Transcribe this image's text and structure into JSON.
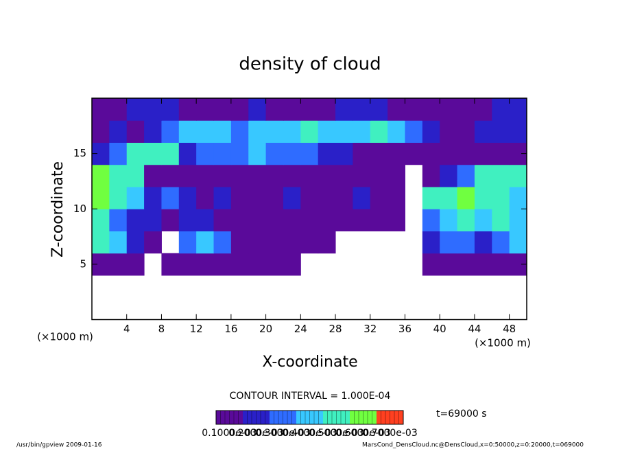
{
  "chart_data": {
    "type": "contour",
    "title": "density of cloud",
    "x_label": "X-coordinate",
    "y_label": "Z-coordinate",
    "x_unit": "(×1000 m)",
    "y_unit": "(×1000 m)",
    "xlim": [
      0,
      50
    ],
    "ylim": [
      0,
      20
    ],
    "xticks": [
      4,
      8,
      12,
      16,
      20,
      24,
      28,
      32,
      36,
      40,
      44,
      48
    ],
    "yticks": [
      5,
      10,
      15
    ],
    "xbins": [
      0,
      2,
      4,
      6,
      8,
      10,
      12,
      14,
      16,
      18,
      20,
      22,
      24,
      26,
      28,
      30,
      32,
      34,
      36,
      38,
      40,
      42,
      44,
      46,
      48,
      50
    ],
    "zbins": [
      0,
      2,
      4,
      6,
      8,
      10,
      12,
      14,
      16,
      18,
      20
    ],
    "field": [
      [
        null,
        null,
        null,
        null,
        null,
        null,
        null,
        null,
        null,
        null,
        null,
        null,
        null,
        null,
        null,
        null,
        null,
        null,
        null,
        null,
        null,
        null,
        null,
        null,
        null
      ],
      [
        null,
        null,
        null,
        null,
        null,
        null,
        null,
        null,
        null,
        null,
        null,
        null,
        null,
        null,
        null,
        null,
        null,
        null,
        null,
        null,
        null,
        null,
        null,
        null,
        null
      ],
      [
        0.0001,
        0.0001,
        0.0001,
        null,
        0.0001,
        0.0001,
        0.0001,
        0.0001,
        0.0001,
        0.0001,
        0.0001,
        0.0001,
        null,
        null,
        null,
        null,
        null,
        null,
        null,
        0.0001,
        0.0001,
        0.0001,
        0.0001,
        0.0001,
        0.0001
      ],
      [
        0.0005,
        0.0004,
        0.0002,
        0.0001,
        null,
        0.0003,
        0.0004,
        0.0003,
        0.0001,
        0.0001,
        0.0001,
        0.0001,
        0.0001,
        0.0001,
        null,
        null,
        null,
        null,
        null,
        0.0002,
        0.0003,
        0.0003,
        0.0002,
        0.0003,
        0.0004
      ],
      [
        0.0005,
        0.0003,
        0.0002,
        0.0002,
        0.0001,
        0.0002,
        0.0002,
        0.0001,
        0.0001,
        0.0001,
        0.0001,
        0.0001,
        0.0001,
        0.0001,
        0.0001,
        0.0001,
        0.0001,
        0.0001,
        null,
        0.0003,
        0.0004,
        0.0005,
        0.0004,
        0.0005,
        0.0004
      ],
      [
        0.0006,
        0.0005,
        0.0004,
        0.0002,
        0.0003,
        0.0002,
        0.0001,
        0.0002,
        0.0001,
        0.0001,
        0.0001,
        0.0002,
        0.0001,
        0.0001,
        0.0001,
        0.0002,
        0.0001,
        0.0001,
        null,
        0.0005,
        0.0005,
        0.0006,
        0.0005,
        0.0005,
        0.0004
      ],
      [
        0.0006,
        0.0005,
        0.0005,
        0.0001,
        0.0001,
        0.0001,
        0.0001,
        0.0001,
        0.0001,
        0.0001,
        0.0001,
        0.0001,
        0.0001,
        0.0001,
        0.0001,
        0.0001,
        0.0001,
        0.0001,
        null,
        0.0001,
        0.0002,
        0.0003,
        0.0005,
        0.0005,
        0.0005
      ],
      [
        0.0002,
        0.0003,
        0.0005,
        0.0005,
        0.0005,
        0.0002,
        0.0003,
        0.0003,
        0.0003,
        0.0004,
        0.0003,
        0.0003,
        0.0003,
        0.0002,
        0.0002,
        0.0001,
        0.0001,
        0.0001,
        0.0001,
        0.0001,
        0.0001,
        0.0001,
        0.0001,
        0.0001,
        0.0001
      ],
      [
        0.0001,
        0.0002,
        0.0001,
        0.0002,
        0.0003,
        0.0004,
        0.0004,
        0.0004,
        0.0003,
        0.0004,
        0.0004,
        0.0004,
        0.0005,
        0.0004,
        0.0004,
        0.0004,
        0.0005,
        0.0004,
        0.0003,
        0.0002,
        0.0001,
        0.0001,
        0.0002,
        0.0002,
        0.0002
      ],
      [
        0.0001,
        0.0001,
        0.0002,
        0.0002,
        0.0002,
        0.0001,
        0.0001,
        0.0001,
        0.0001,
        0.0002,
        0.0001,
        0.0001,
        0.0001,
        0.0001,
        0.0002,
        0.0002,
        0.0002,
        0.0001,
        0.0001,
        0.0001,
        0.0001,
        0.0001,
        0.0001,
        0.0002,
        0.0002
      ]
    ],
    "colorbar": {
      "levels": [
        {
          "value": 0.0001,
          "label": "0.1000e-03"
        },
        {
          "value": 0.0002,
          "label": "0.2000e-03"
        },
        {
          "value": 0.0003,
          "label": "0.3000e-03"
        },
        {
          "value": 0.0004,
          "label": "0.4000e-03"
        },
        {
          "value": 0.0005,
          "label": "0.5000e-03"
        },
        {
          "value": 0.0006,
          "label": "0.6000e-03"
        },
        {
          "value": 0.0007,
          "label": "0.7000e-03"
        }
      ],
      "colors": [
        "#5a0a9a",
        "#2a20c8",
        "#2f6cff",
        "#38c8ff",
        "#40f0c0",
        "#70ff40",
        "#ff4020"
      ]
    },
    "contour_interval": "CONTOUR INTERVAL = 1.000E-04",
    "time_label": "t=69000 s",
    "footer_left": "/usr/bin/gpview  2009-01-16",
    "footer_right": "MarsCond_DensCloud.nc@DensCloud,x=0:50000,z=0:20000,t=069000"
  }
}
